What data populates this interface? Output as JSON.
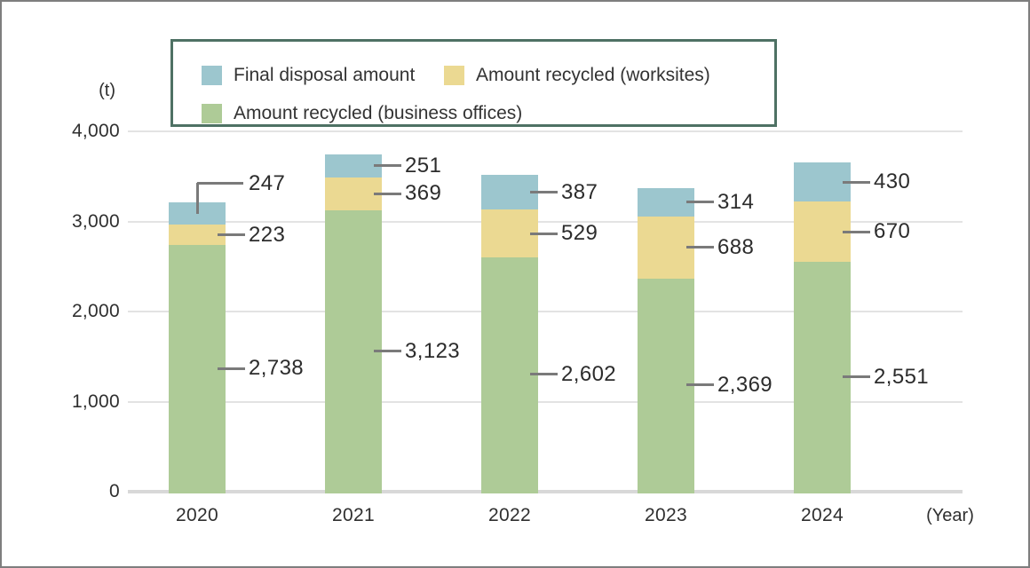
{
  "chart": {
    "unit_label": "(t)",
    "year_axis_label": "(Year)",
    "legend": [
      {
        "label": "Final disposal amount",
        "color": "#9cc6ce"
      },
      {
        "label": "Amount recycled (worksites)",
        "color": "#ebd992"
      },
      {
        "label": "Amount recycled (business offices)",
        "color": "#aecb97"
      }
    ]
  },
  "chart_data": {
    "type": "bar",
    "subtype": "stacked",
    "title": "",
    "xlabel": "(Year)",
    "ylabel": "(t)",
    "categories": [
      "2020",
      "2021",
      "2022",
      "2023",
      "2024"
    ],
    "series": [
      {
        "name": "Amount recycled (business offices)",
        "color": "#aecb97",
        "values": [
          2738,
          3123,
          2602,
          2369,
          2551
        ],
        "labels": [
          "2,738",
          "3,123",
          "2,602",
          "2,369",
          "2,551"
        ]
      },
      {
        "name": "Amount recycled (worksites)",
        "color": "#ebd992",
        "values": [
          223,
          369,
          529,
          688,
          670
        ],
        "labels": [
          "223",
          "369",
          "529",
          "688",
          "670"
        ]
      },
      {
        "name": "Final disposal amount",
        "color": "#9cc6ce",
        "values": [
          247,
          251,
          387,
          314,
          430
        ],
        "labels": [
          "247",
          "251",
          "387",
          "314",
          "430"
        ]
      }
    ],
    "totals": [
      3208,
      3743,
      3518,
      3371,
      3651
    ],
    "ylim": [
      0,
      4000
    ],
    "y_ticks": [
      0,
      1000,
      2000,
      3000,
      4000
    ],
    "y_tick_labels": [
      "0",
      "1,000",
      "2,000",
      "3,000",
      "4,000"
    ],
    "grid": "horizontal",
    "legend_position": "top"
  }
}
